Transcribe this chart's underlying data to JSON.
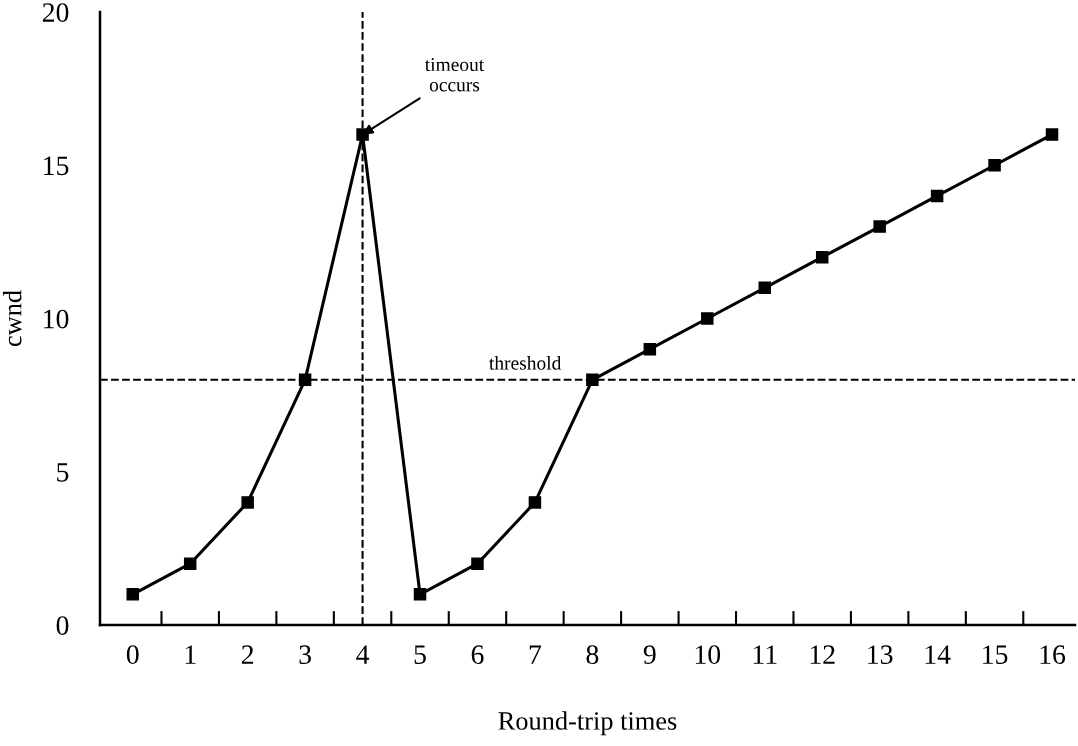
{
  "chart_data": {
    "type": "line",
    "xlabel": "Round-trip times",
    "ylabel": "cwnd",
    "x": [
      0,
      1,
      2,
      3,
      4,
      5,
      6,
      7,
      8,
      9,
      10,
      11,
      12,
      13,
      14,
      15,
      16
    ],
    "series": [
      {
        "color": "#000000",
        "values": [
          1,
          2,
          4,
          8,
          16,
          1,
          2,
          4,
          8,
          9,
          10,
          11,
          12,
          13,
          14,
          15,
          16
        ]
      }
    ],
    "xlim": [
      -0.57,
      16.4
    ],
    "ylim": [
      0,
      20
    ],
    "xticks": [
      0,
      1,
      2,
      3,
      4,
      5,
      6,
      7,
      8,
      9,
      10,
      11,
      12,
      13,
      14,
      15,
      16,
      {
        "value": 0.5,
        "label": null
      },
      {
        "value": 1.5,
        "label": null
      },
      {
        "value": 2.5,
        "label": null
      },
      {
        "value": 3.5,
        "label": null
      },
      {
        "value": 4.5,
        "label": null
      },
      {
        "value": 5.5,
        "label": null
      },
      {
        "value": 6.5,
        "label": null
      },
      {
        "value": 7.5,
        "label": null
      },
      {
        "value": 8.5,
        "label": null
      },
      {
        "value": 9.5,
        "label": null
      },
      {
        "value": 10.5,
        "label": null
      },
      {
        "value": 11.5,
        "label": null
      },
      {
        "value": 12.5,
        "label": null
      },
      {
        "value": 13.5,
        "label": null
      },
      {
        "value": 14.5,
        "label": null
      },
      {
        "value": 15.5,
        "label": null
      }
    ],
    "yticks": [
      0,
      5,
      10,
      15,
      20
    ],
    "marker": "square",
    "line_style": "solid",
    "grid": false,
    "ref_lines": [
      {
        "axis": "y",
        "value": 8,
        "label": "threshold",
        "line_style": "dashed",
        "color": "#000000"
      },
      {
        "axis": "x",
        "value": 4,
        "label": null,
        "line_style": "dashed",
        "color": "#000000"
      }
    ],
    "annotations": [
      {
        "text": "timeout\noccurs",
        "x": 4,
        "y": 16
      }
    ]
  }
}
